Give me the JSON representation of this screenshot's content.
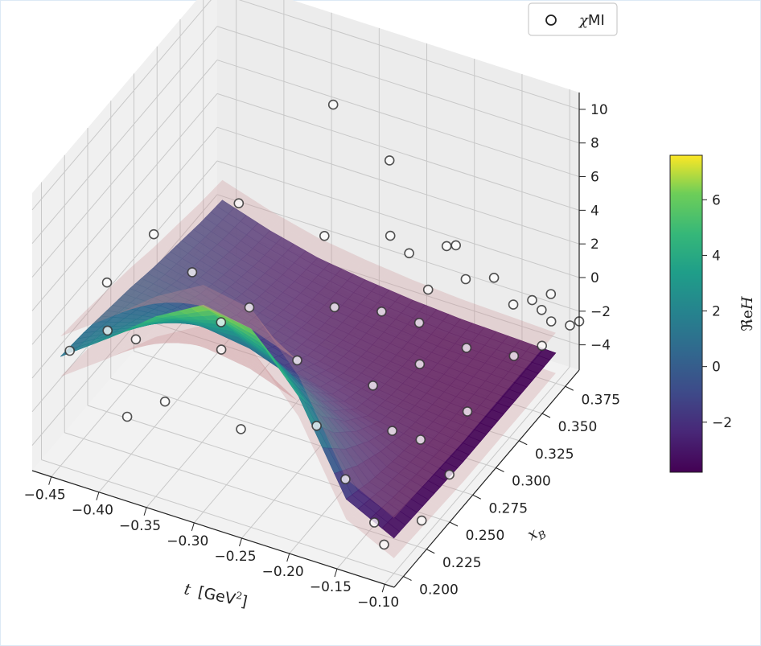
{
  "chart_data": {
    "type": "surface3d",
    "title": "",
    "x_axis": {
      "label": "t [GeV²]",
      "label_main": "t",
      "label_unit_open": "[GeV",
      "label_unit_sup": "2",
      "label_unit_close": "]",
      "range": [
        -0.47,
        -0.09
      ],
      "ticks": [
        -0.45,
        -0.4,
        -0.35,
        -0.3,
        -0.25,
        -0.2,
        -0.15,
        -0.1
      ],
      "tick_labels": [
        "−0.45",
        "−0.40",
        "−0.35",
        "−0.30",
        "−0.25",
        "−0.20",
        "−0.15",
        "−0.10"
      ]
    },
    "y_axis": {
      "label": "x_B",
      "label_main": "x",
      "label_sub": "B",
      "range": [
        0.19,
        0.39
      ],
      "ticks": [
        0.2,
        0.225,
        0.25,
        0.275,
        0.3,
        0.325,
        0.35,
        0.375
      ],
      "tick_labels": [
        "0.200",
        "0.225",
        "0.250",
        "0.275",
        "0.300",
        "0.325",
        "0.350",
        "0.375"
      ]
    },
    "z_axis": {
      "label": "",
      "range": [
        -5.5,
        11
      ],
      "ticks": [
        -4,
        -2,
        0,
        2,
        4,
        6,
        8,
        10
      ],
      "tick_labels": [
        "−4",
        "−2",
        "0",
        "2",
        "4",
        "6",
        "8",
        "10"
      ]
    },
    "colorbar": {
      "label": "ℜeH",
      "label_re": "ℜe",
      "label_h": "H",
      "range": [
        -3.8,
        7.6
      ],
      "ticks": [
        -2,
        0,
        2,
        4,
        6
      ],
      "tick_labels": [
        "−2",
        "0",
        "2",
        "4",
        "6"
      ],
      "colormap": "viridis"
    },
    "surface": {
      "description_model": "ReH(t, xB)",
      "t_values": [
        -0.45,
        -0.4,
        -0.35,
        -0.3,
        -0.25,
        -0.2,
        -0.15,
        -0.1
      ],
      "xB_values": [
        0.2,
        0.225,
        0.25,
        0.275,
        0.3,
        0.325,
        0.35,
        0.375
      ],
      "z": [
        [
          1.0,
          3.0,
          5.2,
          6.8,
          6.3,
          3.2,
          -2.0,
          -3.4
        ],
        [
          0.8,
          2.0,
          3.4,
          4.0,
          2.9,
          0.4,
          -2.6,
          -3.5
        ],
        [
          0.5,
          1.0,
          1.4,
          1.0,
          0.0,
          -1.5,
          -3.0,
          -3.6
        ],
        [
          0.2,
          0.0,
          -0.5,
          -1.2,
          -2.0,
          -2.8,
          -3.3,
          -3.7
        ],
        [
          -0.2,
          -0.8,
          -1.6,
          -2.3,
          -2.8,
          -3.2,
          -3.5,
          -3.7
        ],
        [
          -0.5,
          -1.3,
          -2.1,
          -2.7,
          -3.1,
          -3.4,
          -3.6,
          -3.7
        ],
        [
          -0.8,
          -1.7,
          -2.4,
          -2.9,
          -3.2,
          -3.5,
          -3.6,
          -3.7
        ],
        [
          -1.0,
          -1.9,
          -2.6,
          -3.0,
          -3.3,
          -3.5,
          -3.6,
          -3.7
        ]
      ],
      "band_half_width": 1.2,
      "band_color": "#c98b8e"
    },
    "scatter": {
      "name": "χMI",
      "name_chi": "χ",
      "name_mi": "MI",
      "marker": "open-circle",
      "points": [
        {
          "t": -0.45,
          "xB": 0.21,
          "z": 0.7
        },
        {
          "t": -0.44,
          "xB": 0.24,
          "z": 3.0
        },
        {
          "t": -0.42,
          "xB": 0.27,
          "z": 4.3
        },
        {
          "t": -0.42,
          "xB": 0.22,
          "z": 1.8
        },
        {
          "t": -0.4,
          "xB": 0.23,
          "z": 1.0
        },
        {
          "t": -0.38,
          "xB": 0.2,
          "z": -1.3
        },
        {
          "t": -0.37,
          "xB": 0.26,
          "z": 3.6
        },
        {
          "t": -0.36,
          "xB": 0.3,
          "z": 5.3
        },
        {
          "t": -0.35,
          "xB": 0.21,
          "z": -0.5
        },
        {
          "t": -0.33,
          "xB": 0.25,
          "z": 2.0
        },
        {
          "t": -0.32,
          "xB": 0.24,
          "z": 1.2
        },
        {
          "t": -0.31,
          "xB": 0.26,
          "z": 2.6
        },
        {
          "t": -0.29,
          "xB": 0.33,
          "z": 10.5
        },
        {
          "t": -0.28,
          "xB": 0.22,
          "z": -1.5
        },
        {
          "t": -0.27,
          "xB": 0.3,
          "z": 5.0
        },
        {
          "t": -0.26,
          "xB": 0.36,
          "z": 5.8
        },
        {
          "t": -0.25,
          "xB": 0.25,
          "z": 1.2
        },
        {
          "t": -0.24,
          "xB": 0.28,
          "z": 2.6
        },
        {
          "t": -0.23,
          "xB": 0.33,
          "z": 3.8
        },
        {
          "t": -0.22,
          "xB": 0.34,
          "z": 2.3
        },
        {
          "t": -0.22,
          "xB": 0.24,
          "z": -1.5
        },
        {
          "t": -0.21,
          "xB": 0.3,
          "z": 1.6
        },
        {
          "t": -0.2,
          "xB": 0.36,
          "z": 1.8
        },
        {
          "t": -0.2,
          "xB": 0.37,
          "z": 1.2
        },
        {
          "t": -0.2,
          "xB": 0.34,
          "z": 0.5
        },
        {
          "t": -0.19,
          "xB": 0.27,
          "z": -0.5
        },
        {
          "t": -0.19,
          "xB": 0.32,
          "z": 0.0
        },
        {
          "t": -0.18,
          "xB": 0.23,
          "z": -3.3
        },
        {
          "t": -0.18,
          "xB": 0.36,
          "z": 0.2
        },
        {
          "t": -0.17,
          "xB": 0.3,
          "z": -0.8
        },
        {
          "t": -0.16,
          "xB": 0.37,
          "z": 0.0
        },
        {
          "t": -0.16,
          "xB": 0.26,
          "z": -2.0
        },
        {
          "t": -0.15,
          "xB": 0.33,
          "z": -1.4
        },
        {
          "t": -0.14,
          "xB": 0.22,
          "z": -4.5
        },
        {
          "t": -0.14,
          "xB": 0.27,
          "z": -2.8
        },
        {
          "t": -0.13,
          "xB": 0.36,
          "z": -0.4
        },
        {
          "t": -0.12,
          "xB": 0.3,
          "z": -2.7
        },
        {
          "t": -0.12,
          "xB": 0.37,
          "z": -0.6
        },
        {
          "t": -0.11,
          "xB": 0.37,
          "z": -1.0
        },
        {
          "t": -0.11,
          "xB": 0.38,
          "z": -0.7
        },
        {
          "t": -0.1,
          "xB": 0.37,
          "z": -1.5
        },
        {
          "t": -0.12,
          "xB": 0.21,
          "z": -4.8
        },
        {
          "t": -0.1,
          "xB": 0.23,
          "z": -4.3
        },
        {
          "t": -0.1,
          "xB": 0.26,
          "z": -3.5
        },
        {
          "t": -0.1,
          "xB": 0.36,
          "z": -2.3
        },
        {
          "t": -0.11,
          "xB": 0.34,
          "z": -1.8
        },
        {
          "t": -0.09,
          "xB": 0.38,
          "z": -2.2
        },
        {
          "t": -0.09,
          "xB": 0.39,
          "z": -2.6
        }
      ]
    },
    "legend": {
      "position": "top-right"
    },
    "grid": true
  }
}
